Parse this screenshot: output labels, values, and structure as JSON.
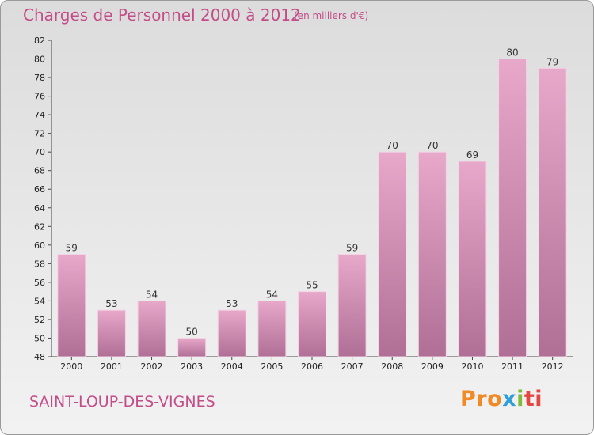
{
  "header": {
    "title": "Charges de Personnel 2000 à 2012",
    "subtitle": "(en milliers d'€)"
  },
  "footer": {
    "city": "SAINT-LOUP-DES-VIGNES",
    "logo_parts": [
      "Pro",
      "x",
      "i",
      "ti"
    ]
  },
  "colors": {
    "bar_top": "#e7a8ca",
    "bar_bottom": "#b06f95",
    "title": "#c24d88"
  },
  "chart_data": {
    "type": "bar",
    "title": "Charges de Personnel 2000 à 2012",
    "subtitle": "(en milliers d'€)",
    "categories": [
      "2000",
      "2001",
      "2002",
      "2003",
      "2004",
      "2005",
      "2006",
      "2007",
      "2008",
      "2009",
      "2010",
      "2011",
      "2012"
    ],
    "values": [
      59,
      53,
      54,
      50,
      53,
      54,
      55,
      59,
      70,
      70,
      69,
      80,
      79
    ],
    "ylim": [
      48,
      82
    ],
    "yticks": [
      48,
      50,
      52,
      54,
      56,
      58,
      60,
      62,
      64,
      66,
      68,
      70,
      72,
      74,
      76,
      78,
      80,
      82
    ],
    "grid": false,
    "legend": "none"
  }
}
